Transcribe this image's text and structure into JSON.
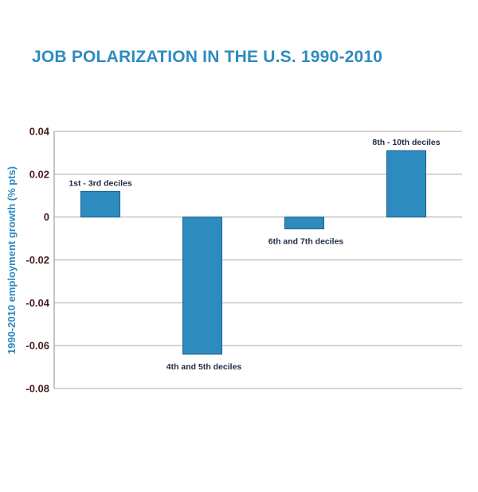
{
  "chart_data": {
    "type": "bar",
    "title": "JOB POLARIZATION IN THE U.S. 1990-2010",
    "xlabel": "",
    "ylabel": "1990-2010 employment growth (% pts)",
    "categories": [
      "1st - 3rd deciles",
      "4th and 5th deciles",
      "6th and 7th deciles",
      "8th - 10th deciles"
    ],
    "values": [
      0.012,
      -0.064,
      -0.0055,
      0.031
    ],
    "ylim": [
      -0.08,
      0.04
    ],
    "yticks": [
      0.04,
      0.02,
      0,
      -0.02,
      -0.04,
      -0.06,
      -0.08
    ],
    "ytick_labels": [
      "0.04",
      "0.02",
      "0",
      "-0.02",
      "-0.04",
      "-0.06",
      "-0.08"
    ],
    "grid": true,
    "colors": {
      "bar": "#2e8bc0",
      "bar_edge": "#1f5f8a",
      "title": "#2e8bc0",
      "ylabel": "#2e8bc0",
      "ticks": "#4a1a1f",
      "grid": "#aaaaaa",
      "bar_labels": "#1f2a44"
    }
  }
}
